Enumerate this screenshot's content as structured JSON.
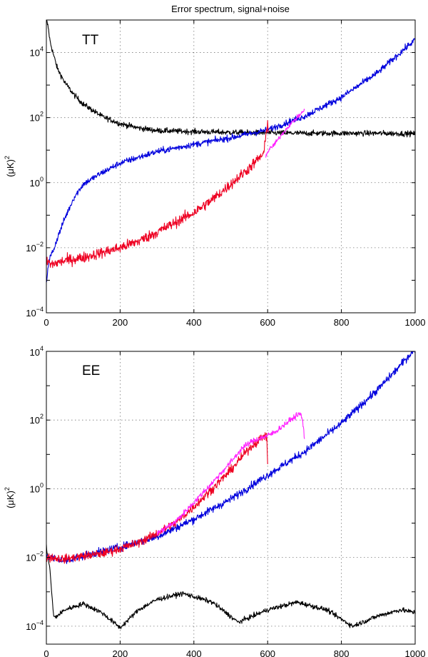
{
  "figure": {
    "title": "Error spectrum, signal+noise"
  },
  "chart_data": [
    {
      "type": "line",
      "panel_label": "TT",
      "xlabel": "",
      "ylabel_base": "(μK)",
      "ylabel_sup": "2",
      "xlim": [
        0,
        1000
      ],
      "ylim": [
        0.0001,
        100000
      ],
      "yscale": "log",
      "grid": true,
      "x_ticks": [
        "0",
        "200",
        "400",
        "600",
        "800",
        "1000"
      ],
      "y_ticks": [
        {
          "base": "10",
          "exp": "−4",
          "value": 0.0001
        },
        {
          "base": "10",
          "exp": "−2",
          "value": 0.01
        },
        {
          "base": "10",
          "exp": "0",
          "value": 1
        },
        {
          "base": "10",
          "exp": "2",
          "value": 100
        },
        {
          "base": "10",
          "exp": "4",
          "value": 10000
        }
      ],
      "series": [
        {
          "color": "#000000",
          "noise": 0.06,
          "x": [
            0,
            5,
            10,
            20,
            30,
            50,
            75,
            100,
            150,
            200,
            250,
            300,
            400,
            500,
            600,
            700,
            800,
            900,
            1000
          ],
          "y": [
            100000,
            60000,
            22000,
            8000,
            3200,
            1200,
            500,
            260,
            110,
            65,
            48,
            40,
            37,
            35,
            34,
            33,
            33,
            33,
            32
          ]
        },
        {
          "color": "#0000dd",
          "noise": 0.07,
          "x": [
            0,
            5,
            10,
            20,
            30,
            50,
            75,
            100,
            150,
            200,
            300,
            400,
            500,
            600,
            700,
            800,
            900,
            1000
          ],
          "y": [
            0.0008,
            0.003,
            0.005,
            0.009,
            0.02,
            0.08,
            0.35,
            0.9,
            2.0,
            4.0,
            9.0,
            15.0,
            24.0,
            42.0,
            110,
            420,
            2500,
            25000
          ]
        },
        {
          "color": "#ee0022",
          "noise": 0.12,
          "x": [
            0,
            5,
            10,
            50,
            100,
            150,
            200,
            250,
            300,
            350,
            400,
            450,
            500,
            550,
            590,
            600,
            602
          ],
          "y": [
            0.003,
            0.004,
            0.003,
            0.004,
            0.005,
            0.007,
            0.01,
            0.016,
            0.03,
            0.06,
            0.12,
            0.3,
            0.9,
            2.8,
            8,
            80,
            45
          ]
        },
        {
          "color": "#ff22ff",
          "noise": 0.05,
          "x": [
            595,
            600,
            620,
            640,
            660,
            680,
            700
          ],
          "y": [
            6,
            9,
            16,
            32,
            60,
            100,
            170
          ]
        }
      ]
    },
    {
      "type": "line",
      "panel_label": "EE",
      "xlabel": "",
      "ylabel_base": "(μK)",
      "ylabel_sup": "2",
      "xlim": [
        0,
        1000
      ],
      "ylim": [
        3e-05,
        10000
      ],
      "yscale": "log",
      "grid": true,
      "x_ticks": [
        "0",
        "200",
        "400",
        "600",
        "800",
        "1000"
      ],
      "y_ticks": [
        {
          "base": "10",
          "exp": "−4",
          "value": 0.0001
        },
        {
          "base": "10",
          "exp": "−2",
          "value": 0.01
        },
        {
          "base": "10",
          "exp": "0",
          "value": 1
        },
        {
          "base": "10",
          "exp": "2",
          "value": 100
        },
        {
          "base": "10",
          "exp": "4",
          "value": 10000
        }
      ],
      "series": [
        {
          "color": "#000000",
          "noise": 0.05,
          "x": [
            0,
            5,
            10,
            15,
            20,
            30,
            50,
            100,
            150,
            200,
            250,
            300,
            370,
            450,
            520,
            600,
            680,
            760,
            830,
            900,
            960,
            1000
          ],
          "y": [
            0.02,
            0.01,
            0.004,
            0.0008,
            0.00018,
            0.0002,
            0.0003,
            0.00045,
            0.00025,
            9e-05,
            0.0003,
            0.0006,
            0.0009,
            0.0005,
            0.00013,
            0.0003,
            0.0005,
            0.0003,
            0.0001,
            0.0002,
            0.0003,
            0.00025
          ]
        },
        {
          "color": "#0000dd",
          "noise": 0.08,
          "x": [
            0,
            10,
            50,
            100,
            150,
            200,
            300,
            400,
            500,
            600,
            700,
            800,
            900,
            950,
            1000
          ],
          "y": [
            0.012,
            0.01,
            0.008,
            0.011,
            0.015,
            0.02,
            0.04,
            0.13,
            0.5,
            2.5,
            12,
            80,
            800,
            3000,
            12000
          ]
        },
        {
          "color": "#ee0022",
          "noise": 0.09,
          "x": [
            0,
            10,
            50,
            100,
            150,
            200,
            250,
            300,
            350,
            400,
            450,
            500,
            550,
            590,
            598,
            600
          ],
          "y": [
            0.01,
            0.01,
            0.009,
            0.011,
            0.013,
            0.018,
            0.027,
            0.05,
            0.1,
            0.3,
            1.0,
            3.5,
            15,
            35,
            30,
            5
          ]
        },
        {
          "color": "#ff22ff",
          "noise": 0.06,
          "x": [
            300,
            350,
            400,
            450,
            500,
            530,
            560,
            600,
            620,
            650,
            680,
            690,
            695,
            700
          ],
          "y": [
            0.05,
            0.11,
            0.4,
            1.5,
            6,
            15,
            25,
            35,
            45,
            80,
            140,
            150,
            90,
            30
          ]
        }
      ]
    }
  ]
}
